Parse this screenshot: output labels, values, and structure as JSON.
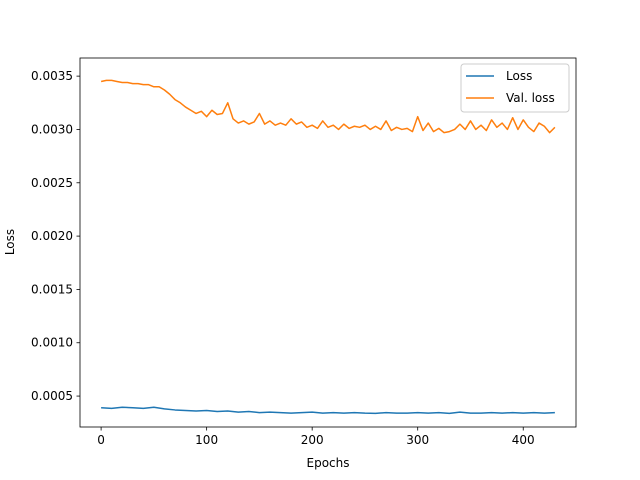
{
  "chart_data": {
    "type": "line",
    "title": "",
    "xlabel": "Epochs",
    "ylabel": "Loss",
    "xlim": [
      -20,
      450
    ],
    "ylim": [
      0.00021,
      0.00367
    ],
    "xticks": [
      0,
      100,
      200,
      300,
      400
    ],
    "xtick_labels": [
      "0",
      "100",
      "200",
      "300",
      "400"
    ],
    "yticks": [
      0.0005,
      0.001,
      0.0015,
      0.002,
      0.0025,
      0.003,
      0.0035
    ],
    "ytick_labels": [
      "0.0005",
      "0.0010",
      "0.0015",
      "0.0020",
      "0.0025",
      "0.0030",
      "0.0035"
    ],
    "grid": false,
    "legend_position": "upper right",
    "series": [
      {
        "name": "Loss",
        "color": "#1f77b4",
        "x": [
          0,
          10,
          20,
          30,
          40,
          50,
          60,
          70,
          80,
          90,
          100,
          110,
          120,
          130,
          140,
          150,
          160,
          170,
          180,
          190,
          200,
          210,
          220,
          230,
          240,
          250,
          260,
          270,
          280,
          290,
          300,
          310,
          320,
          330,
          340,
          350,
          360,
          370,
          380,
          390,
          400,
          410,
          420,
          430
        ],
        "y": [
          0.00039,
          0.000385,
          0.000395,
          0.00039,
          0.000385,
          0.000395,
          0.00038,
          0.00037,
          0.000365,
          0.00036,
          0.000365,
          0.000355,
          0.00036,
          0.00035,
          0.000355,
          0.000345,
          0.00035,
          0.000345,
          0.00034,
          0.000345,
          0.00035,
          0.00034,
          0.000345,
          0.00034,
          0.000345,
          0.00034,
          0.000338,
          0.000345,
          0.00034,
          0.00034,
          0.000345,
          0.00034,
          0.000345,
          0.000338,
          0.00035,
          0.00034,
          0.00034,
          0.000345,
          0.00034,
          0.000345,
          0.00034,
          0.000345,
          0.00034,
          0.000345
        ]
      },
      {
        "name": "Val. loss",
        "color": "#ff7f0e",
        "x": [
          0,
          5,
          10,
          15,
          20,
          25,
          30,
          35,
          40,
          45,
          50,
          55,
          60,
          65,
          70,
          75,
          80,
          85,
          90,
          95,
          100,
          105,
          110,
          115,
          120,
          125,
          130,
          135,
          140,
          145,
          150,
          155,
          160,
          165,
          170,
          175,
          180,
          185,
          190,
          195,
          200,
          205,
          210,
          215,
          220,
          225,
          230,
          235,
          240,
          245,
          250,
          255,
          260,
          265,
          270,
          275,
          280,
          285,
          290,
          295,
          300,
          305,
          310,
          315,
          320,
          325,
          330,
          335,
          340,
          345,
          350,
          355,
          360,
          365,
          370,
          375,
          380,
          385,
          390,
          395,
          400,
          405,
          410,
          415,
          420,
          425,
          430
        ],
        "y": [
          0.00345,
          0.00346,
          0.00346,
          0.00345,
          0.00344,
          0.00344,
          0.00343,
          0.00343,
          0.00342,
          0.00342,
          0.0034,
          0.0034,
          0.00337,
          0.00333,
          0.00328,
          0.00325,
          0.00321,
          0.00318,
          0.00315,
          0.00317,
          0.00312,
          0.00318,
          0.00314,
          0.00315,
          0.00325,
          0.0031,
          0.00306,
          0.00308,
          0.00305,
          0.00307,
          0.00315,
          0.00305,
          0.00308,
          0.00304,
          0.00306,
          0.00304,
          0.0031,
          0.00305,
          0.00307,
          0.00302,
          0.00304,
          0.00301,
          0.00308,
          0.00302,
          0.00304,
          0.003,
          0.00305,
          0.00301,
          0.00303,
          0.00302,
          0.00304,
          0.003,
          0.00303,
          0.003,
          0.00308,
          0.00299,
          0.00302,
          0.003,
          0.00301,
          0.00298,
          0.00312,
          0.00299,
          0.00306,
          0.00298,
          0.00301,
          0.00297,
          0.00298,
          0.003,
          0.00305,
          0.003,
          0.00308,
          0.003,
          0.00304,
          0.00299,
          0.00309,
          0.00302,
          0.00306,
          0.003,
          0.00311,
          0.003,
          0.00309,
          0.00302,
          0.00298,
          0.00306,
          0.00303,
          0.00297,
          0.00302
        ]
      }
    ]
  }
}
